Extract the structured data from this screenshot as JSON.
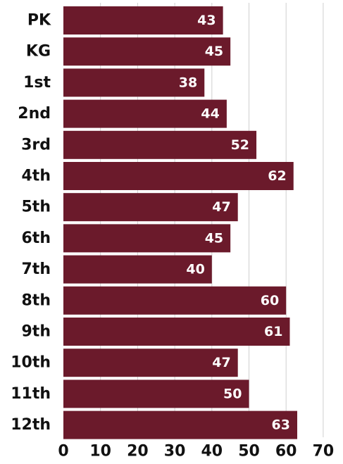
{
  "chart_data": {
    "type": "bar",
    "orientation": "horizontal",
    "categories": [
      "PK",
      "KG",
      "1st",
      "2nd",
      "3rd",
      "4th",
      "5th",
      "6th",
      "7th",
      "8th",
      "9th",
      "10th",
      "11th",
      "12th"
    ],
    "values": [
      43,
      45,
      38,
      44,
      52,
      62,
      47,
      45,
      40,
      60,
      61,
      47,
      50,
      63
    ],
    "xlim": [
      0,
      70
    ],
    "x_ticks": [
      "0",
      "10",
      "20",
      "30",
      "40",
      "50",
      "60",
      "70"
    ],
    "title": "",
    "xlabel": "",
    "ylabel": "",
    "grid": "vertical",
    "legend": "none",
    "data_labels": "inside-end",
    "colors": {
      "bar": "#6b1a2b",
      "grid": "#cfcfcf",
      "label_text": "#111111",
      "data_label_text": "#ffffff"
    }
  }
}
